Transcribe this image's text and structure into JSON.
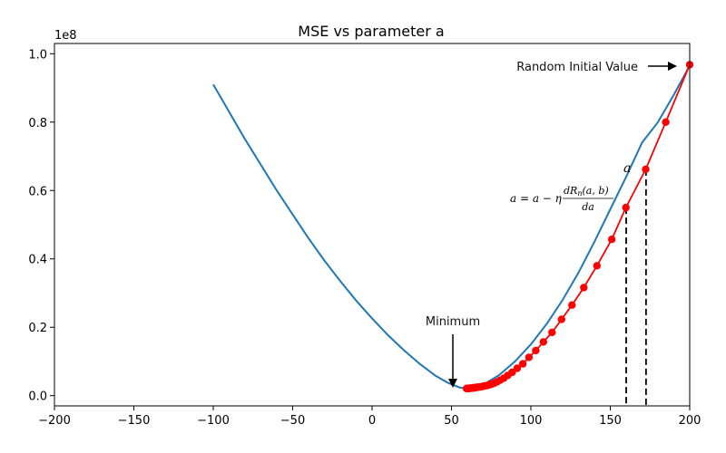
{
  "chart_data": {
    "type": "line",
    "title": "MSE vs parameter a",
    "xlabel": "",
    "ylabel": "",
    "y_offset_label": "1e8",
    "xlim": [
      -200,
      200
    ],
    "ylim": [
      -0.03,
      1.03
    ],
    "x_ticks": [
      -200,
      -150,
      -100,
      -50,
      0,
      50,
      100,
      150,
      200
    ],
    "x_tick_labels": [
      "−200",
      "−150",
      "−100",
      "−50",
      "0",
      "50",
      "100",
      "150",
      "200"
    ],
    "y_ticks": [
      0.0,
      0.2,
      0.4,
      0.6,
      0.8,
      1.0
    ],
    "y_tick_labels": [
      "0.0",
      "0.2",
      "0.4",
      "0.6",
      "0.8",
      "1.0"
    ],
    "grid": false,
    "series": [
      {
        "role": "mse-curve",
        "color": "#1f77b4",
        "x": [
          -100,
          -90,
          -80,
          -70,
          -60,
          -50,
          -40,
          -30,
          -20,
          -10,
          0,
          10,
          20,
          30,
          40,
          48,
          55,
          60,
          70,
          80,
          90,
          100,
          110,
          120,
          130,
          140,
          150,
          160,
          170,
          180,
          190,
          200
        ],
        "y": [
          0.91,
          0.83,
          0.75,
          0.675,
          0.6,
          0.53,
          0.46,
          0.395,
          0.335,
          0.278,
          0.226,
          0.177,
          0.133,
          0.093,
          0.058,
          0.037,
          0.024,
          0.02,
          0.032,
          0.06,
          0.1,
          0.15,
          0.21,
          0.28,
          0.36,
          0.45,
          0.545,
          0.64,
          0.74,
          0.8,
          0.88,
          0.965
        ]
      },
      {
        "role": "descent-steps",
        "color": "#ff0000",
        "x": [
          200.0,
          184.9,
          172.3,
          159.8,
          150.9,
          141.6,
          133.3,
          125.9,
          119.3,
          113.3,
          107.9,
          103.1,
          98.8,
          94.9,
          91.4,
          88.2,
          85.4,
          82.9,
          80.6,
          78.5,
          76.6,
          74.9,
          73.4,
          72.0,
          70.7,
          69.6,
          68.6,
          67.7,
          66.9,
          66.1,
          65.4,
          64.7,
          64.1,
          63.6,
          63.1,
          62.7,
          62.3,
          61.9,
          61.6,
          61.3,
          61.0,
          60.8,
          60.6,
          60.4,
          60.2,
          60.0,
          59.8,
          59.7,
          59.6,
          59.5
        ],
        "y": [
          0.968,
          0.8,
          0.662,
          0.55,
          0.457,
          0.38,
          0.316,
          0.265,
          0.223,
          0.185,
          0.157,
          0.132,
          0.112,
          0.093,
          0.08,
          0.068,
          0.059,
          0.051,
          0.045,
          0.04,
          0.036,
          0.033,
          0.031,
          0.029,
          0.028,
          0.027,
          0.026,
          0.025,
          0.025,
          0.024,
          0.024,
          0.023,
          0.023,
          0.023,
          0.022,
          0.022,
          0.022,
          0.022,
          0.022,
          0.021,
          0.021,
          0.021,
          0.021,
          0.021,
          0.021,
          0.021,
          0.021,
          0.021,
          0.021,
          0.021
        ]
      }
    ],
    "vertical_dashed_lines": [
      {
        "x": 160,
        "y_top": 0.55
      },
      {
        "x": 172.5,
        "y_top": 0.662
      }
    ],
    "annotations": [
      {
        "text": "Random Initial Value",
        "arrow_to": [
          197,
          0.97
        ]
      },
      {
        "text": "Minimum",
        "arrow_to": [
          51,
          0.015
        ]
      },
      {
        "text": "a",
        "at": [
          160,
          0.66
        ],
        "kind": "math"
      },
      {
        "text": "a = a − η dRn(a,b)/da",
        "kind": "math-formula",
        "lhs": "a = a − η",
        "num": "dR",
        "num_sub": "n",
        "num_args": "(a, b)",
        "den": "da"
      }
    ]
  }
}
